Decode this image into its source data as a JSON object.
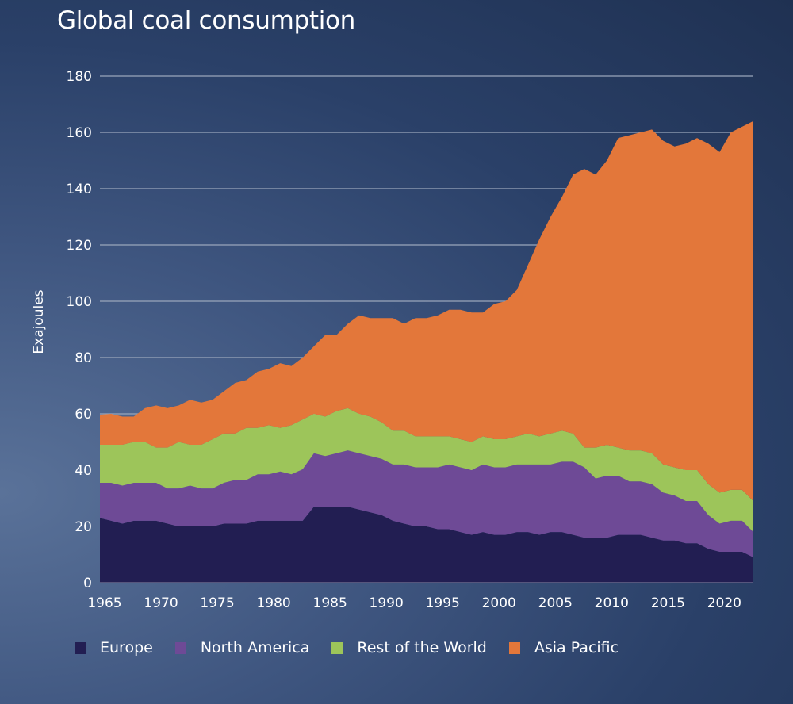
{
  "chart_data": {
    "type": "area",
    "stacked": true,
    "title": "Global coal consumption",
    "xlabel": "",
    "ylabel": "Exajoules",
    "ylim": [
      0,
      180
    ],
    "yticks": [
      0,
      20,
      40,
      60,
      80,
      100,
      120,
      140,
      160,
      180
    ],
    "xticks": [
      1965,
      1970,
      1975,
      1980,
      1985,
      1990,
      1995,
      2000,
      2005,
      2010,
      2015,
      2020
    ],
    "grid": "horizontal",
    "legend_position": "bottom",
    "x": [
      1965,
      1966,
      1967,
      1968,
      1969,
      1970,
      1971,
      1972,
      1973,
      1974,
      1975,
      1976,
      1977,
      1978,
      1979,
      1980,
      1981,
      1982,
      1983,
      1984,
      1985,
      1986,
      1987,
      1988,
      1989,
      1990,
      1991,
      1992,
      1993,
      1994,
      1995,
      1996,
      1997,
      1998,
      1999,
      2000,
      2001,
      2002,
      2003,
      2004,
      2005,
      2006,
      2007,
      2008,
      2009,
      2010,
      2011,
      2012,
      2013,
      2014,
      2015,
      2016,
      2017,
      2018,
      2019,
      2020,
      2021,
      2022,
      2023
    ],
    "series": [
      {
        "name": "Europe",
        "color": "#221e52",
        "values": [
          23,
          22,
          21,
          22,
          22,
          22,
          21,
          20,
          20,
          20,
          20,
          21,
          21,
          21,
          22,
          22,
          22,
          22,
          22,
          27,
          27,
          27,
          27,
          26,
          25,
          24,
          22,
          21,
          20,
          20,
          19,
          19,
          18,
          17,
          18,
          17,
          17,
          18,
          18,
          17,
          18,
          18,
          17,
          16,
          16,
          16,
          17,
          17,
          17,
          16,
          15,
          15,
          14,
          14,
          12,
          11,
          11,
          11,
          9
        ]
      },
      {
        "name": "North America",
        "color": "#6e4a96",
        "values": [
          12.5,
          13.5,
          13.5,
          13.5,
          13.5,
          13.5,
          12.5,
          13.5,
          14.5,
          13.5,
          13.5,
          14.5,
          15.5,
          15.5,
          16.5,
          16.5,
          17.5,
          16.5,
          18.3,
          19,
          18,
          19,
          20,
          20,
          20,
          20,
          20,
          21,
          21,
          21,
          22,
          23,
          23,
          23,
          24,
          24,
          24,
          24,
          24,
          25,
          24,
          25,
          26,
          25,
          21,
          22,
          21,
          19,
          19,
          19,
          17,
          16,
          15,
          15,
          12,
          10,
          11,
          11,
          9
        ]
      },
      {
        "name": "Rest of the World",
        "color": "#9dc55a",
        "values": [
          13.5,
          13.5,
          14.5,
          14.5,
          14.5,
          12.5,
          14.5,
          16.5,
          14.5,
          15.5,
          17.5,
          17.5,
          16.5,
          18.5,
          16.5,
          17.5,
          15.5,
          17.5,
          17.7,
          14,
          14,
          15,
          15,
          14,
          14,
          13,
          12,
          12,
          11,
          11,
          11,
          10,
          10,
          10,
          10,
          10,
          10,
          10,
          11,
          10,
          11,
          11,
          10,
          7,
          11,
          11,
          10,
          11,
          11,
          11,
          10,
          10,
          11,
          11,
          11,
          11,
          11,
          11,
          11
        ]
      },
      {
        "name": "Asia Pacific",
        "color": "#e3773a",
        "values": [
          10.7,
          11,
          10,
          9,
          12,
          15,
          14,
          13,
          16,
          15,
          14,
          15,
          18,
          17,
          20,
          20,
          23,
          21,
          22,
          24,
          29,
          27,
          30,
          35,
          35,
          37,
          40,
          38,
          42,
          42,
          43,
          45,
          46,
          46,
          44,
          48,
          49,
          52,
          60,
          70,
          77,
          83,
          92,
          99,
          97,
          101,
          110,
          112,
          113,
          115,
          115,
          114,
          116,
          118,
          121,
          121,
          127,
          129,
          135
        ]
      }
    ]
  },
  "legend": [
    {
      "label": "Europe",
      "color": "#221e52"
    },
    {
      "label": "North America",
      "color": "#6e4a96"
    },
    {
      "label": "Rest of the World",
      "color": "#9dc55a"
    },
    {
      "label": "Asia Pacific",
      "color": "#e3773a"
    }
  ]
}
